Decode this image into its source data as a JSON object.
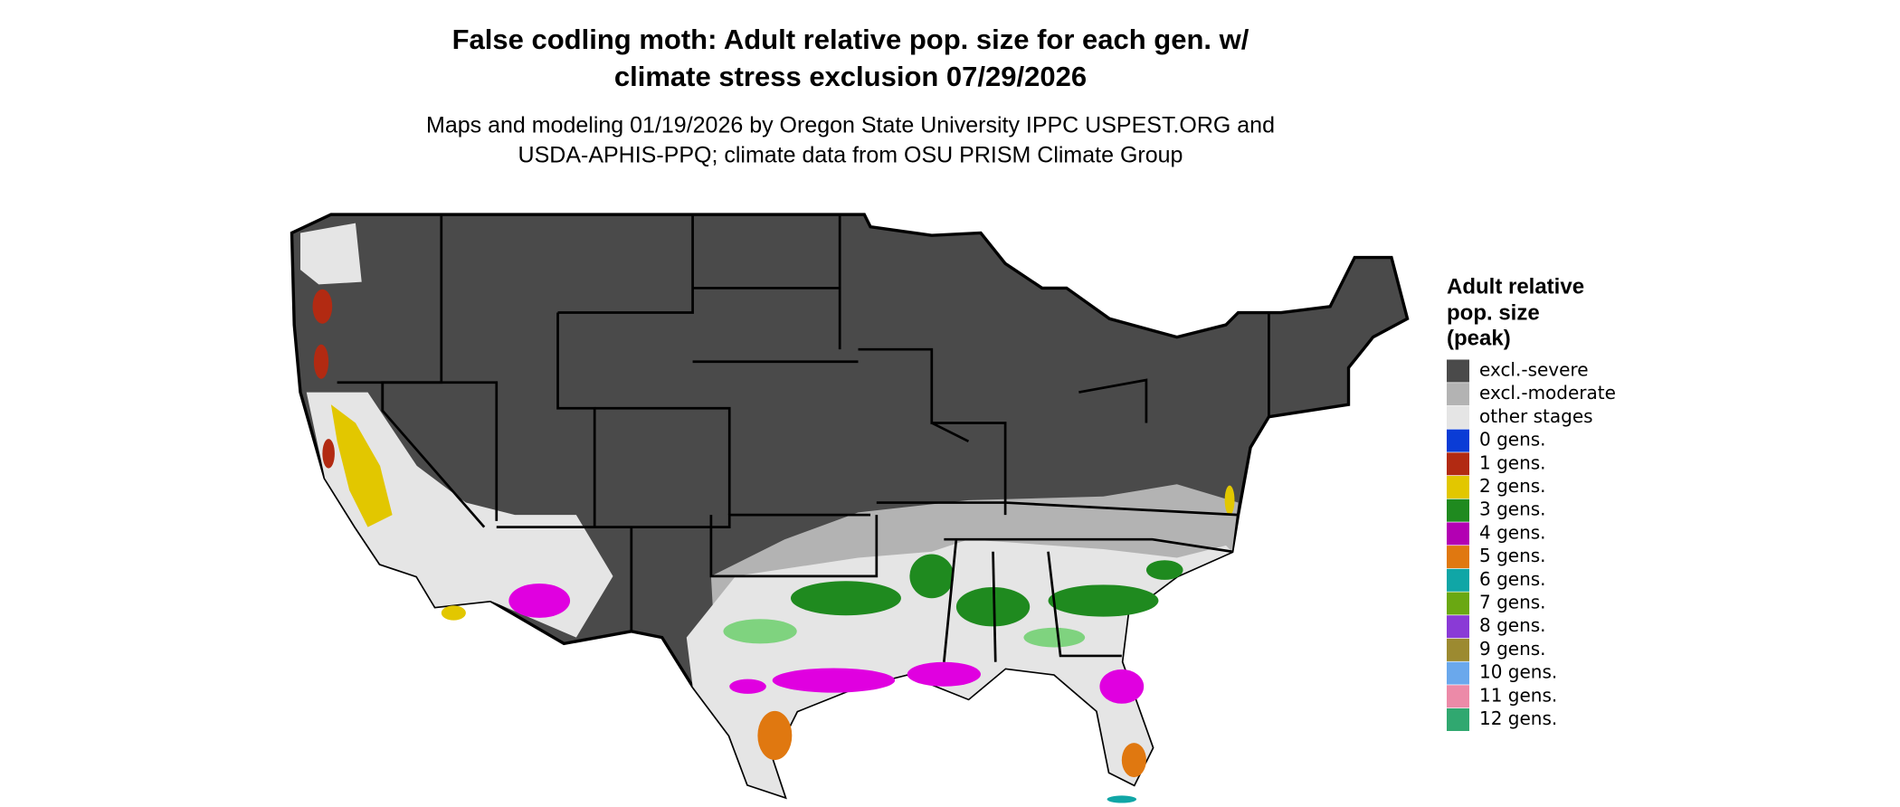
{
  "header": {
    "title_lines": [
      "False codling moth: Adult relative pop. size for each gen. w/",
      "climate stress exclusion 07/29/2026"
    ],
    "subtitle_lines": [
      "Maps and modeling 01/19/2026 by Oregon State University IPPC USPEST.ORG and",
      "USDA-APHIS-PPQ; climate data from OSU PRISM Climate Group"
    ]
  },
  "legend": {
    "title_lines": [
      "Adult relative",
      "pop. size",
      "(peak)"
    ],
    "items": [
      {
        "label": "excl.-severe",
        "color": "#4a4a4a"
      },
      {
        "label": "excl.-moderate",
        "color": "#b3b3b3"
      },
      {
        "label": "other stages",
        "color": "#e5e5e5"
      },
      {
        "label": "0 gens.",
        "color": "#0a3cd6"
      },
      {
        "label": "1 gens.",
        "color": "#b22a12"
      },
      {
        "label": "2 gens.",
        "color": "#e2c700"
      },
      {
        "label": "3 gens.",
        "color": "#1f8a1f"
      },
      {
        "label": "4 gens.",
        "color": "#b300b3"
      },
      {
        "label": "5 gens.",
        "color": "#e07810"
      },
      {
        "label": "6 gens.",
        "color": "#10a6a6"
      },
      {
        "label": "7 gens.",
        "color": "#6aa812"
      },
      {
        "label": "8 gens.",
        "color": "#8a3ad6"
      },
      {
        "label": "9 gens.",
        "color": "#9c8a30"
      },
      {
        "label": "10 gens.",
        "color": "#6aa8ec"
      },
      {
        "label": "11 gens.",
        "color": "#ec8aa8"
      },
      {
        "label": "12 gens.",
        "color": "#30a870"
      }
    ]
  }
}
